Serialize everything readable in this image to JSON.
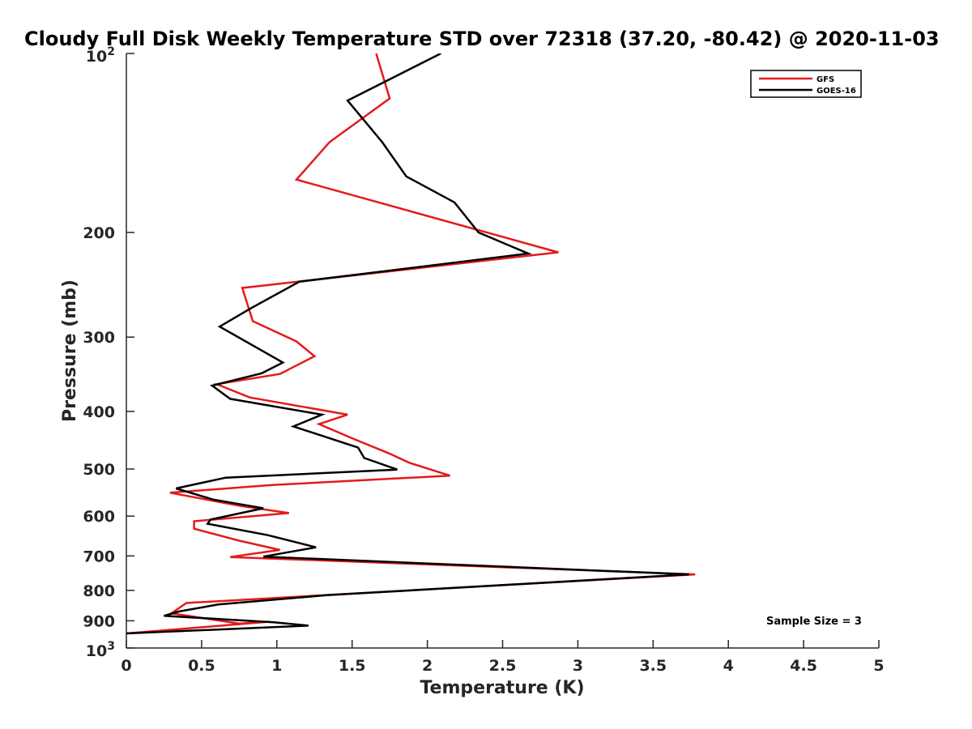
{
  "chart_data": {
    "type": "line",
    "title": "Cloudy Full Disk Weekly Temperature STD over 72318 (37.20, -80.42) @ 2020-11-03",
    "xlabel": "Temperature (K)",
    "ylabel": "Pressure (mb)",
    "xlim": [
      0,
      5
    ],
    "ylim": [
      100,
      1000
    ],
    "yscale": "log",
    "y_reversed": true,
    "x_ticks": [
      0,
      0.5,
      1,
      1.5,
      2,
      2.5,
      3,
      3.5,
      4,
      4.5,
      5
    ],
    "x_tick_labels": [
      "0",
      "0.5",
      "1",
      "1.5",
      "2",
      "2.5",
      "3",
      "3.5",
      "4",
      "4.5",
      "5"
    ],
    "y_ticks": [
      200,
      300,
      400,
      500,
      600,
      700,
      800,
      900
    ],
    "y_tick_labels": [
      "200",
      "300",
      "400",
      "500",
      "600",
      "700",
      "800",
      "900"
    ],
    "y_limit_labels": {
      "top": {
        "base": "10",
        "exp": "2"
      },
      "bottom": {
        "base": "10",
        "exp": "3"
      }
    },
    "legend_position": "top-right",
    "annotation": "Sample Size = 3",
    "series": [
      {
        "name": "GFS",
        "color": "#e41a1c",
        "x": [
          1.66,
          1.75,
          1.35,
          1.13,
          2.87,
          0.77,
          0.84,
          1.13,
          1.25,
          1.02,
          0.6,
          0.82,
          1.47,
          1.28,
          1.52,
          1.74,
          1.88,
          2.15,
          0.97,
          0.29,
          0.76,
          1.08,
          0.45,
          0.45,
          0.75,
          1.02,
          0.69,
          3.78,
          0.4,
          0.3,
          0.75,
          0.95,
          0
        ],
        "y": [
          100,
          119,
          141,
          163,
          216,
          248,
          282,
          305,
          323,
          346,
          360,
          379,
          405,
          420,
          446,
          470,
          488,
          513,
          532,
          548,
          577,
          593,
          612,
          630,
          660,
          684,
          703,
          752,
          840,
          874,
          910,
          903,
          945
        ]
      },
      {
        "name": "GOES-16",
        "color": "#000000",
        "x": [
          2.09,
          1.47,
          1.7,
          1.86,
          2.18,
          2.34,
          2.67,
          1.15,
          0.83,
          0.62,
          1.04,
          0.9,
          0.57,
          0.69,
          1.3,
          1.11,
          1.54,
          1.58,
          1.8,
          0.66,
          0.33,
          0.58,
          0.91,
          0.56,
          0.54,
          0.94,
          1.17,
          1.26,
          0.91,
          3.74,
          1.33,
          0.61,
          0.35,
          0.25,
          0.98,
          1.21,
          0
        ],
        "y": [
          100,
          120,
          141,
          161,
          178,
          200,
          217,
          242,
          268,
          288,
          331,
          345,
          362,
          381,
          405,
          424,
          460,
          479,
          501,
          517,
          539,
          563,
          582,
          608,
          618,
          646,
          668,
          677,
          702,
          752,
          815,
          845,
          868,
          883,
          905,
          917,
          945
        ]
      }
    ]
  }
}
